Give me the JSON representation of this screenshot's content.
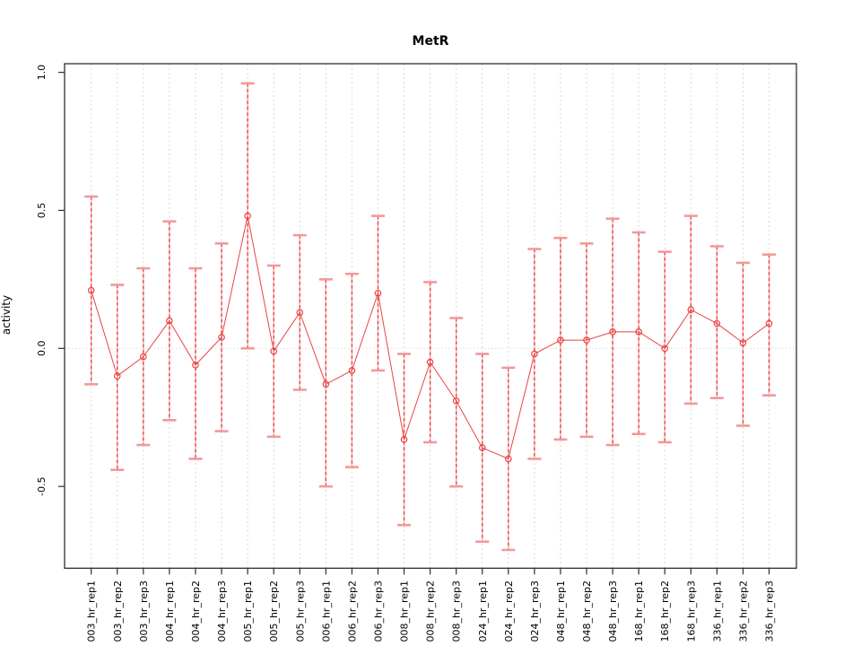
{
  "title": "MetR",
  "chart_data": {
    "type": "scatter",
    "title": "MetR",
    "xlabel": "",
    "ylabel": "activity",
    "ylim": [
      -0.8,
      1.03
    ],
    "yticks": [
      1.0,
      0.5,
      0.0,
      -0.5
    ],
    "ytick_labels": [
      "1.0",
      "0.5",
      "0.0",
      "-0.5"
    ],
    "grid": "vertical dotted gridline at each category; horizontal dotted reference line at y=0",
    "legend": "none",
    "colors": {
      "point_and_line": "#e84343",
      "errorbar_dash": "#e84343",
      "errorbar_light": "#f7b2b2",
      "errorbar_cap": "#f49898",
      "gridline": "#d9d9d9",
      "axis": "#2e2e2e",
      "text": "#000000"
    },
    "categories": [
      "003_hr_rep1",
      "003_hr_rep2",
      "003_hr_rep3",
      "004_hr_rep1",
      "004_hr_rep2",
      "004_hr_rep3",
      "005_hr_rep1",
      "005_hr_rep2",
      "005_hr_rep3",
      "006_hr_rep1",
      "006_hr_rep2",
      "006_hr_rep3",
      "008_hr_rep1",
      "008_hr_rep2",
      "008_hr_rep3",
      "024_hr_rep1",
      "024_hr_rep2",
      "024_hr_rep3",
      "048_hr_rep1",
      "048_hr_rep2",
      "048_hr_rep3",
      "168_hr_rep1",
      "168_hr_rep2",
      "168_hr_rep3",
      "336_hr_rep1",
      "336_hr_rep2",
      "336_hr_rep3"
    ],
    "series": [
      {
        "name": "activity",
        "values": [
          0.21,
          -0.1,
          -0.03,
          0.1,
          -0.06,
          0.04,
          0.48,
          -0.01,
          0.13,
          -0.13,
          -0.08,
          0.2,
          -0.33,
          -0.05,
          -0.19,
          -0.36,
          -0.4,
          -0.02,
          0.03,
          0.03,
          0.06,
          0.06,
          0.0,
          0.14,
          0.09,
          0.02,
          0.09
        ],
        "upper": [
          0.55,
          0.23,
          0.29,
          0.46,
          0.29,
          0.38,
          0.96,
          0.3,
          0.41,
          0.25,
          0.27,
          0.48,
          -0.02,
          0.24,
          0.11,
          -0.02,
          -0.07,
          0.36,
          0.4,
          0.38,
          0.47,
          0.42,
          0.35,
          0.48,
          0.37,
          0.31,
          0.34
        ],
        "lower": [
          -0.13,
          -0.44,
          -0.35,
          -0.26,
          -0.4,
          -0.3,
          0.0,
          -0.32,
          -0.15,
          -0.5,
          -0.43,
          -0.08,
          -0.64,
          -0.34,
          -0.5,
          -0.7,
          -0.73,
          -0.4,
          -0.33,
          -0.32,
          -0.35,
          -0.31,
          -0.34,
          -0.2,
          -0.18,
          -0.28,
          -0.17
        ]
      }
    ]
  }
}
